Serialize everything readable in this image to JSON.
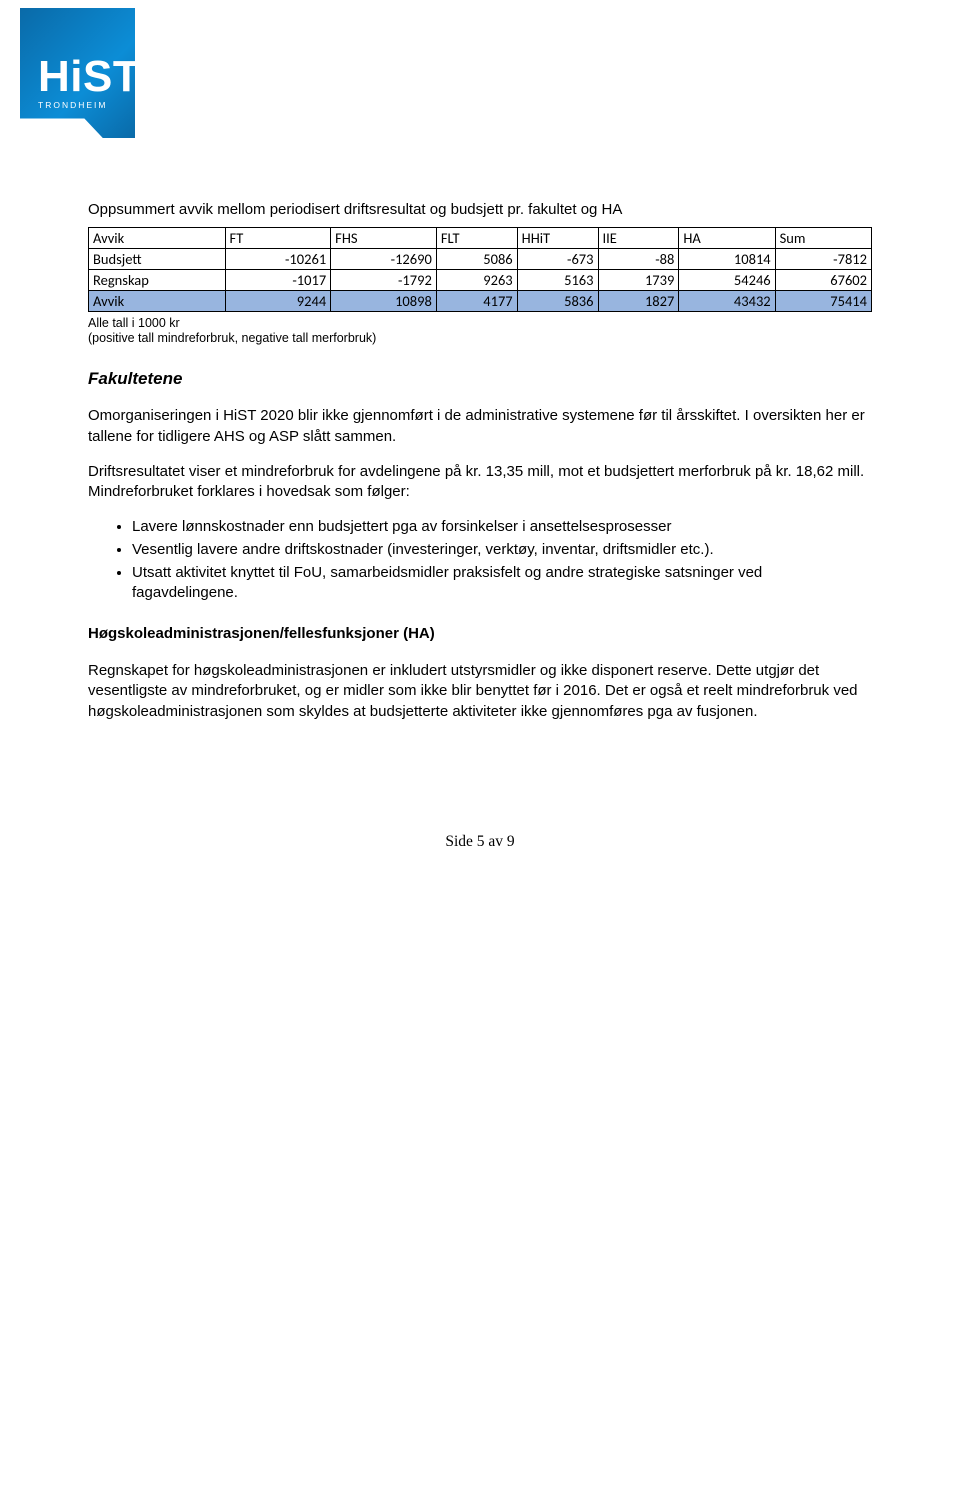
{
  "logo": {
    "main": "HiST",
    "sub": "TRONDHEIM"
  },
  "intro": "Oppsummert avvik mellom periodisert driftsresultat og budsjett pr. fakultet og HA",
  "table": {
    "columns": [
      "Avvik",
      "FT",
      "FHS",
      "FLT",
      "HHiT",
      "IIE",
      "HA",
      "Sum"
    ],
    "rows": [
      {
        "label": "Budsjett",
        "vals": [
          "-10261",
          "-12690",
          "5086",
          "-673",
          "-88",
          "10814",
          "-7812"
        ]
      },
      {
        "label": "Regnskap",
        "vals": [
          "-1017",
          "-1792",
          "9263",
          "5163",
          "1739",
          "54246",
          "67602"
        ]
      },
      {
        "label": "Avvik",
        "vals": [
          "9244",
          "10898",
          "4177",
          "5836",
          "1827",
          "43432",
          "75414"
        ],
        "hl": true
      }
    ]
  },
  "note1": "Alle tall i 1000 kr",
  "note2": "(positive tall mindreforbruk, negative tall merforbruk)",
  "fakultetene_head": "Fakultetene",
  "para1": "Omorganiseringen i HiST 2020 blir ikke gjennomført i de administrative systemene før til årsskiftet. I oversikten her er tallene for tidligere AHS og ASP slått sammen.",
  "para2": "Driftsresultatet viser et mindreforbruk for avdelingene på kr. 13,35 mill, mot et budsjettert merforbruk på kr. 18,62 mill. Mindreforbruket forklares i hovedsak som følger:",
  "bullets": [
    "Lavere lønnskostnader enn budsjettert pga av forsinkelser i ansettelsesprosesser",
    "Vesentlig lavere andre driftskostnader (investeringer, verktøy, inventar, driftsmidler etc.).",
    "Utsatt aktivitet knyttet til FoU, samarbeidsmidler praksisfelt og andre strategiske satsninger ved fagavdelingene."
  ],
  "ha_head": "Høgskoleadministrasjonen/fellesfunksjoner (HA)",
  "para3": "Regnskapet for høgskoleadministrasjonen er inkludert utstyrsmidler og ikke disponert reserve. Dette utgjør det vesentligste av mindreforbruket, og er midler som ikke blir benyttet før i 2016. Det er også et reelt mindreforbruk ved høgskoleadministrasjonen som skyldes at budsjetterte aktiviteter ikke gjennomføres pga av fusjonen.",
  "footer": "Side 5 av 9"
}
